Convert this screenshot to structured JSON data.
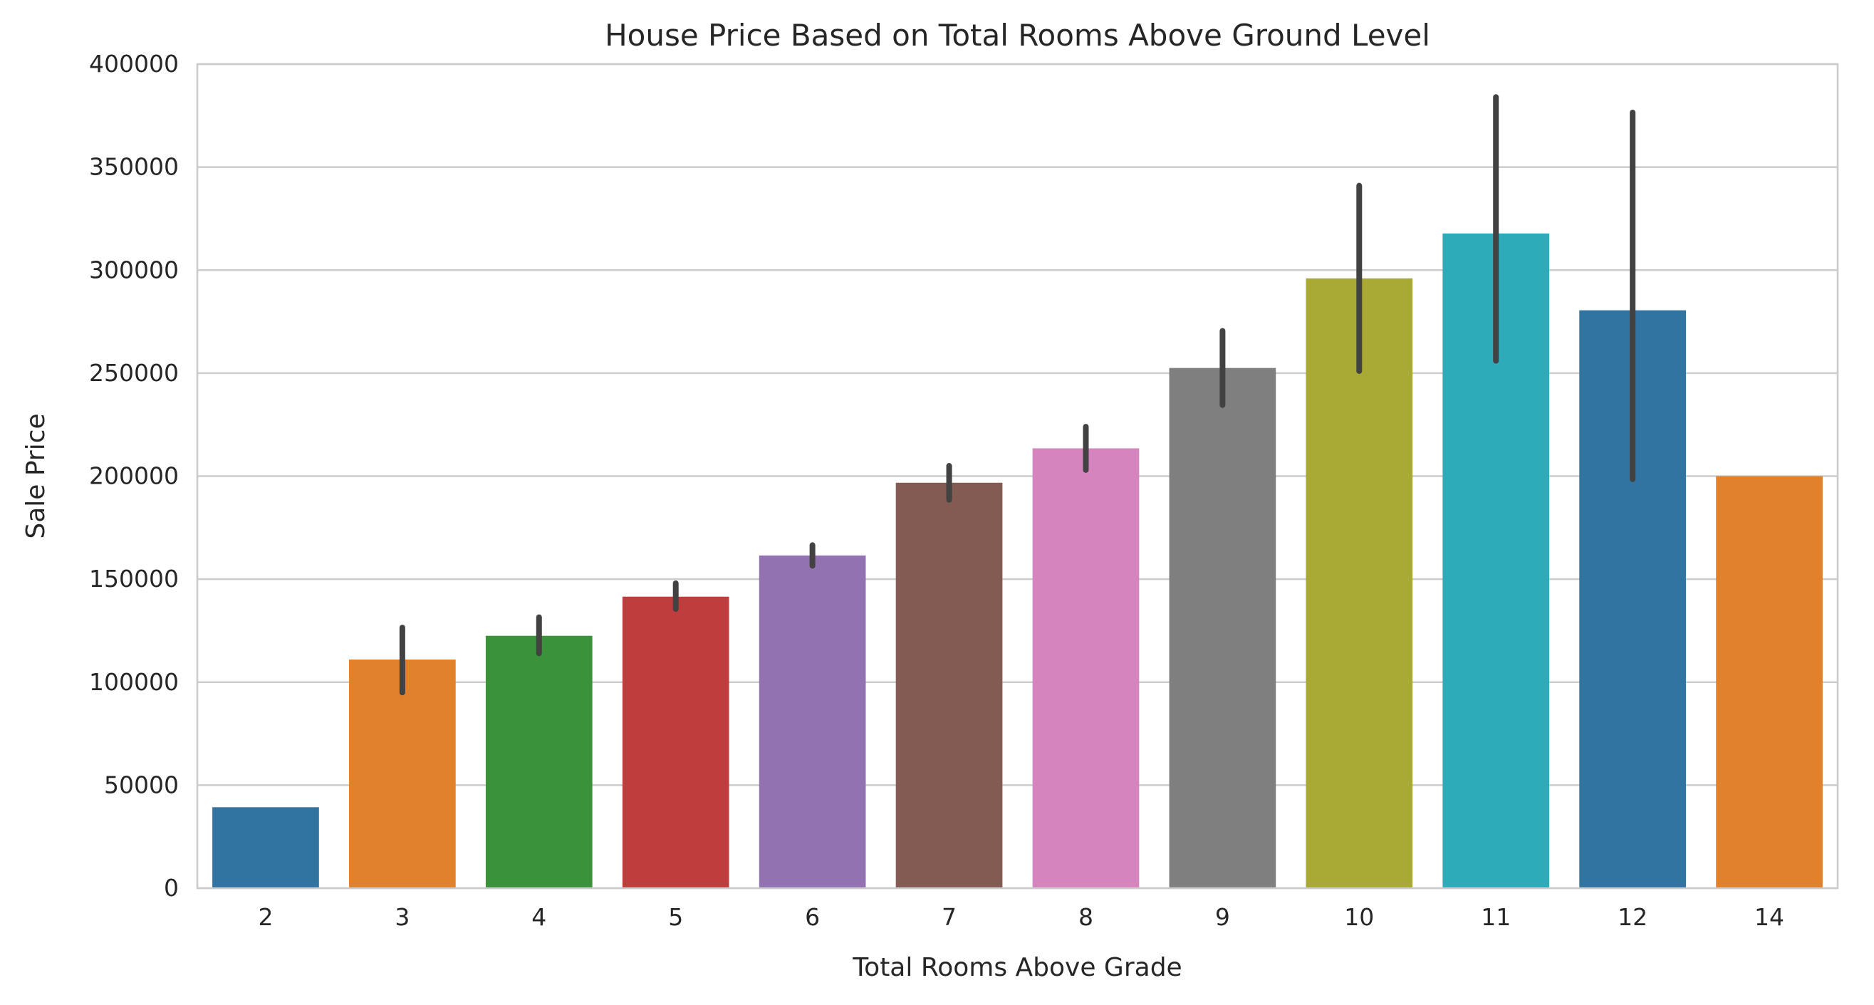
{
  "chart_data": {
    "type": "bar",
    "title": "House Price Based on Total Rooms Above Ground Level",
    "xlabel": "Total Rooms Above Grade",
    "ylabel": "Sale Price",
    "categories": [
      "2",
      "3",
      "4",
      "5",
      "6",
      "7",
      "8",
      "9",
      "10",
      "11",
      "12",
      "14"
    ],
    "values": [
      39300,
      111000,
      122500,
      141500,
      161500,
      196800,
      213500,
      252500,
      296000,
      317800,
      280500,
      200000
    ],
    "error_bars": [
      null,
      [
        95000,
        126500
      ],
      [
        114000,
        131500
      ],
      [
        135500,
        148000
      ],
      [
        156500,
        166500
      ],
      [
        188500,
        205000
      ],
      [
        203000,
        224000
      ],
      [
        234500,
        270500
      ],
      [
        251000,
        341000
      ],
      [
        256000,
        384000
      ],
      [
        198500,
        376500
      ],
      null
    ],
    "colors": [
      "#3274a1",
      "#e1812c",
      "#3a923a",
      "#c03d3e",
      "#9372b2",
      "#845b53",
      "#d684bd",
      "#7f7f7f",
      "#a9aa35",
      "#2eabb8",
      "#3274a1",
      "#e1812c"
    ],
    "error_color": "#424242",
    "ylim": [
      0,
      400000
    ],
    "yticks": [
      "0",
      "50000",
      "100000",
      "150000",
      "200000",
      "250000",
      "300000",
      "350000",
      "400000"
    ],
    "grid": true
  }
}
